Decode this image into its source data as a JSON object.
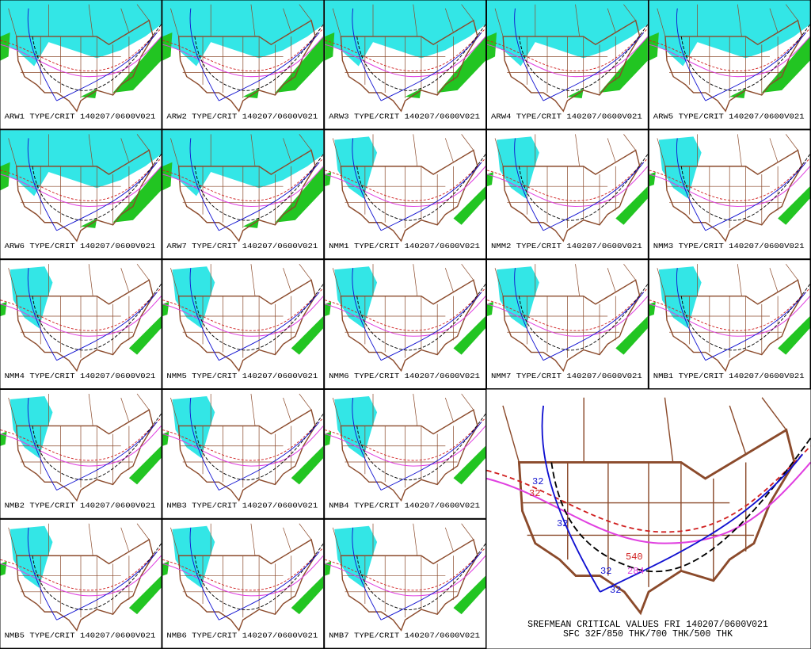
{
  "panels": [
    {
      "label": "ARW1 TYPE/CRIT 140207/0600V021"
    },
    {
      "label": "ARW2 TYPE/CRIT 140207/0600V021"
    },
    {
      "label": "ARW3 TYPE/CRIT 140207/0600V021"
    },
    {
      "label": "ARW4 TYPE/CRIT 140207/0600V021"
    },
    {
      "label": "ARW5 TYPE/CRIT 140207/0600V021"
    },
    {
      "label": "ARW6 TYPE/CRIT 140207/0600V021"
    },
    {
      "label": "ARW7 TYPE/CRIT 140207/0600V021"
    },
    {
      "label": "NMM1 TYPE/CRIT 140207/0600V021"
    },
    {
      "label": "NMM2 TYPE/CRIT 140207/0600V021"
    },
    {
      "label": "NMM3 TYPE/CRIT 140207/0600V021"
    },
    {
      "label": "NMM4 TYPE/CRIT 140207/0600V021"
    },
    {
      "label": "NMM5 TYPE/CRIT 140207/0600V021"
    },
    {
      "label": "NMM6 TYPE/CRIT 140207/0600V021"
    },
    {
      "label": "NMM7 TYPE/CRIT 140207/0600V021"
    },
    {
      "label": "NMB1 TYPE/CRIT 140207/0600V021"
    },
    {
      "label": "NMB2 TYPE/CRIT 140207/0600V021"
    },
    {
      "label": "NMB3 TYPE/CRIT 140207/0600V021"
    },
    {
      "label": "NMB4 TYPE/CRIT 140207/0600V021"
    },
    {
      "label": "NMB5 TYPE/CRIT 140207/0600V021"
    },
    {
      "label": "NMB6 TYPE/CRIT 140207/0600V021"
    },
    {
      "label": "NMB7 TYPE/CRIT 140207/0600V021"
    }
  ],
  "summary": {
    "title": "SREFMEAN CRITICAL VALUES FRI 140207/0600V021",
    "subtitle": "SFC 32F/850 THK/700 THK/500 THK",
    "contour_labels": [
      "32",
      "32",
      "32",
      "32",
      "32",
      "540",
      "284"
    ]
  }
}
